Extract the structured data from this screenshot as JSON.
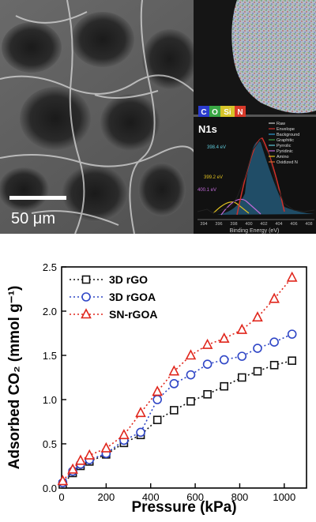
{
  "sem": {
    "scale_bar_label": "50 μm",
    "map_label": "N1s",
    "element_legend": [
      {
        "symbol": "C",
        "color": "#2b3ccf"
      },
      {
        "symbol": "O",
        "color": "#3aa845"
      },
      {
        "symbol": "Si",
        "color": "#d8c52a"
      },
      {
        "symbol": "N",
        "color": "#d83a2a"
      }
    ],
    "xps_inset": {
      "xlabel": "Binding Energy (eV)",
      "x_ticks": [
        "394",
        "396",
        "398",
        "400",
        "402",
        "404",
        "406",
        "408"
      ],
      "peak_labels": [
        "398.4 eV",
        "399.2 eV",
        "400.1 eV"
      ],
      "legend": [
        {
          "label": "Raw",
          "color": "#222222"
        },
        {
          "label": "Envelope",
          "color": "#d0302a"
        },
        {
          "label": "Background",
          "color": "#2e9ad0"
        },
        {
          "label": "Graphitic",
          "color": "#3c9a44"
        },
        {
          "label": "Pyrrolic",
          "color": "#5fc8d8"
        },
        {
          "label": "Pyridinic",
          "color": "#c06ad8"
        },
        {
          "label": "Amino",
          "color": "#e0c020"
        },
        {
          "label": "Oxidized N",
          "color": "#d06a30"
        }
      ]
    }
  },
  "chart_data": {
    "type": "line",
    "xlabel": "Pressure (kPa)",
    "ylabel": "Adsorbed CO₂ (mmol g⁻¹)",
    "xlim": [
      0,
      1100
    ],
    "ylim": [
      0,
      2.5
    ],
    "x_ticks": [
      0,
      200,
      400,
      600,
      800,
      1000
    ],
    "y_ticks": [
      "0.0",
      "0.5",
      "1.0",
      "1.5",
      "2.0",
      "2.5"
    ],
    "legend_position": "top-left",
    "grid": false,
    "series": [
      {
        "name": "3D rGO",
        "color": "#111111",
        "marker": "square",
        "x": [
          5,
          50,
          85,
          125,
          200,
          280,
          355,
          430,
          505,
          580,
          655,
          730,
          810,
          880,
          955,
          1035
        ],
        "y": [
          0.04,
          0.17,
          0.25,
          0.3,
          0.38,
          0.51,
          0.6,
          0.77,
          0.88,
          0.98,
          1.06,
          1.15,
          1.25,
          1.32,
          1.39,
          1.44
        ]
      },
      {
        "name": "3D rGOA",
        "color": "#2f46c6",
        "marker": "circle",
        "x": [
          5,
          50,
          85,
          125,
          200,
          280,
          355,
          430,
          505,
          580,
          655,
          730,
          810,
          880,
          955,
          1035
        ],
        "y": [
          0.06,
          0.19,
          0.27,
          0.32,
          0.39,
          0.54,
          0.63,
          1.0,
          1.18,
          1.28,
          1.4,
          1.45,
          1.49,
          1.58,
          1.65,
          1.74
        ]
      },
      {
        "name": "SN-rGOA",
        "color": "#e0261c",
        "marker": "triangle",
        "x": [
          5,
          50,
          85,
          125,
          200,
          280,
          355,
          430,
          505,
          580,
          655,
          730,
          810,
          880,
          955,
          1035
        ],
        "y": [
          0.08,
          0.21,
          0.31,
          0.37,
          0.45,
          0.6,
          0.85,
          1.09,
          1.32,
          1.5,
          1.62,
          1.69,
          1.79,
          1.93,
          2.14,
          2.38
        ]
      }
    ]
  }
}
